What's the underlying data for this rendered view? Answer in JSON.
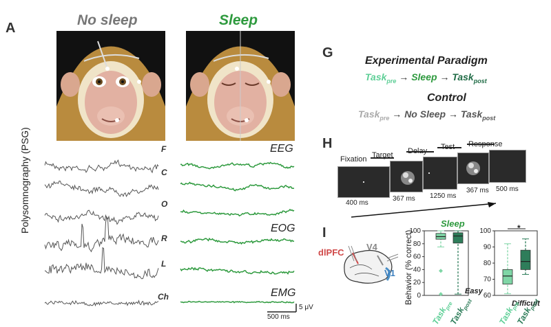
{
  "panel_a": {
    "letter": "A",
    "no_sleep_title": "No sleep",
    "sleep_title": "Sleep",
    "psg_label": "Polysomnography (PSG)",
    "channels": [
      "F",
      "C",
      "O",
      "R",
      "L",
      "Ch"
    ],
    "signal_labels": [
      "EEG",
      "EOG",
      "EMG"
    ],
    "scale_voltage": "5 μV",
    "scale_time": "500 ms"
  },
  "panel_g": {
    "letter": "G",
    "experimental_title": "Experimental Paradigm",
    "experimental": {
      "pre": "Task",
      "pre_sub": "pre",
      "mid": "Sleep",
      "post": "Task",
      "post_sub": "post"
    },
    "control_title": "Control",
    "control": {
      "pre": "Task",
      "pre_sub": "pre",
      "mid": "No Sleep",
      "post": "Task",
      "post_sub": "post"
    },
    "arrow": "→"
  },
  "panel_h": {
    "letter": "H",
    "stages": [
      "Fixation",
      "Target",
      "Delay",
      "Test",
      "Response"
    ],
    "durations": [
      "400 ms",
      "367 ms",
      "1250 ms",
      "367 ms",
      "500 ms"
    ]
  },
  "panel_i": {
    "letter": "I",
    "sleep_title": "Sleep",
    "brain_labels": {
      "dlpfc": "dlPFC",
      "v4": "V4",
      "v1": "V1"
    },
    "ylabel": "Behavior  (% correct)",
    "easy_label": "Easy",
    "difficult_label": "Difficult",
    "significance": "*",
    "x_categories": [
      {
        "main": "Task",
        "sub": "pre"
      },
      {
        "main": "Task",
        "sub": "post"
      }
    ],
    "colors": {
      "pre": "#7fd6a6",
      "post": "#2e7d5a",
      "sleep_green": "#2e9a3e"
    }
  },
  "chart_data": [
    {
      "type": "box",
      "panel": "Easy",
      "ylim": [
        0,
        100
      ],
      "yticks": [
        0,
        20,
        40,
        60,
        80,
        100
      ],
      "categories": [
        "Task_pre",
        "Task_post"
      ],
      "boxes": [
        {
          "whisker_low": 75,
          "q1": 87,
          "median": 91,
          "q3": 96,
          "whisker_high": 100,
          "outliers": [
            38,
            2
          ]
        },
        {
          "whisker_low": 2,
          "q1": 81,
          "median": 92,
          "q3": 97,
          "whisker_high": 100,
          "outliers": []
        }
      ]
    },
    {
      "type": "box",
      "panel": "Difficult",
      "ylim": [
        60,
        100
      ],
      "yticks": [
        60,
        70,
        80,
        90,
        100
      ],
      "categories": [
        "Task_pre",
        "Task_post"
      ],
      "boxes": [
        {
          "whisker_low": 61,
          "q1": 67,
          "median": 72,
          "q3": 76,
          "whisker_high": 92,
          "outliers": []
        },
        {
          "whisker_low": 73,
          "q1": 76,
          "median": 81,
          "q3": 88,
          "whisker_high": 95,
          "outliers": []
        }
      ]
    }
  ]
}
